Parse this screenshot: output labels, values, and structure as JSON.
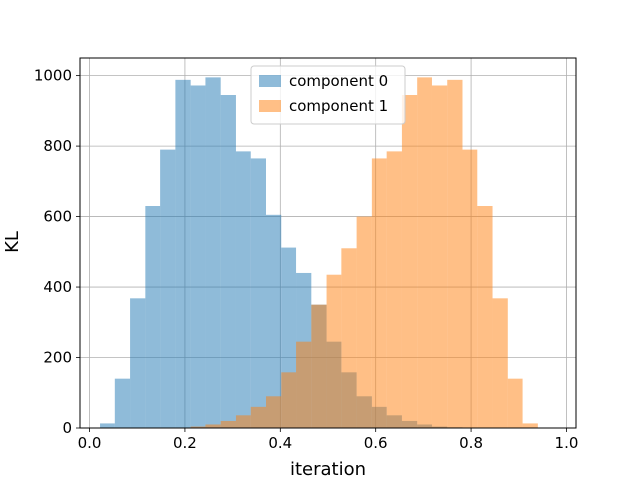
{
  "chart_data": {
    "type": "histogram",
    "xlabel": "iteration",
    "ylabel": "KL",
    "xlim": [
      -0.02,
      1.02
    ],
    "ylim": [
      0,
      1050
    ],
    "xticks": [
      0.0,
      0.2,
      0.4,
      0.6,
      0.8,
      1.0
    ],
    "xtick_labels": [
      "0.0",
      "0.2",
      "0.4",
      "0.6",
      "0.8",
      "1.0"
    ],
    "yticks": [
      0,
      200,
      400,
      600,
      800,
      1000
    ],
    "ytick_labels": [
      "0",
      "200",
      "400",
      "600",
      "800",
      "1000"
    ],
    "grid": true,
    "legend_position": "top-center",
    "series": [
      {
        "name": "component 0",
        "color": "#1f77b4",
        "alpha": 0.5,
        "bin_edges": [
          0.022,
          0.053,
          0.085,
          0.117,
          0.148,
          0.18,
          0.212,
          0.243,
          0.275,
          0.307,
          0.338,
          0.37,
          0.402,
          0.433,
          0.465,
          0.497,
          0.528,
          0.56,
          0.592,
          0.623,
          0.655,
          0.687,
          0.718,
          0.75,
          0.782,
          0.813,
          0.845,
          0.877,
          0.908,
          0.94,
          0.972
        ],
        "counts": [
          13,
          140,
          368,
          630,
          790,
          988,
          972,
          995,
          945,
          785,
          765,
          605,
          512,
          440,
          350,
          245,
          158,
          90,
          60,
          36,
          20,
          10,
          4,
          2,
          0,
          0,
          0,
          0,
          0,
          0
        ]
      },
      {
        "name": "component 1",
        "color": "#ff7f0e",
        "alpha": 0.5,
        "bin_edges": [
          0.022,
          0.053,
          0.085,
          0.117,
          0.148,
          0.18,
          0.212,
          0.243,
          0.275,
          0.307,
          0.338,
          0.37,
          0.402,
          0.433,
          0.465,
          0.497,
          0.528,
          0.56,
          0.592,
          0.623,
          0.655,
          0.687,
          0.718,
          0.75,
          0.782,
          0.813,
          0.845,
          0.877,
          0.908,
          0.94,
          0.972
        ],
        "counts": [
          0,
          0,
          0,
          0,
          0,
          0,
          4,
          10,
          20,
          36,
          60,
          90,
          158,
          245,
          350,
          435,
          510,
          600,
          765,
          785,
          945,
          995,
          972,
          988,
          790,
          630,
          368,
          140,
          13,
          0
        ]
      }
    ]
  }
}
